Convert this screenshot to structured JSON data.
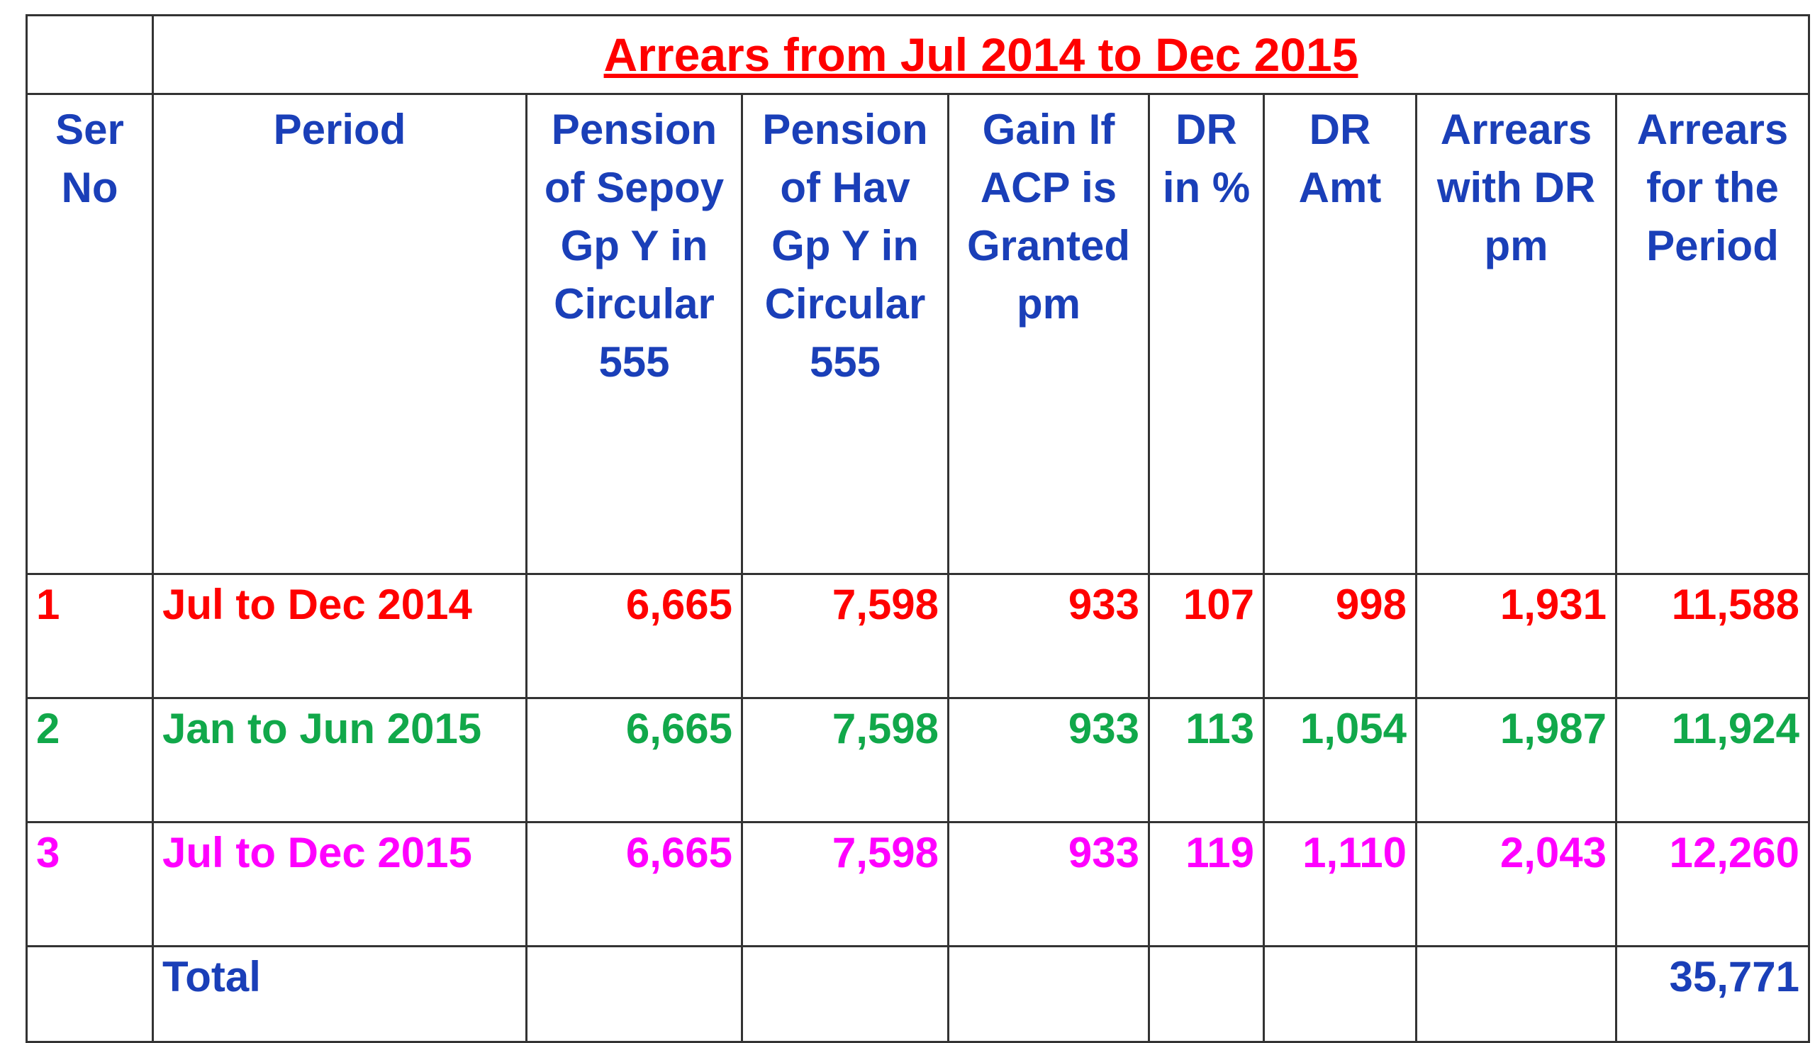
{
  "title": "Arrears from Jul 2014 to Dec 2015",
  "colors": {
    "title": "#ff0000",
    "header": "#1a3fb8",
    "border": "#333333",
    "total": "#1a3fb8"
  },
  "headers": [
    [
      "Ser",
      "No"
    ],
    [
      "Period"
    ],
    [
      "Pension",
      "of Sepoy",
      "Gp Y  in",
      "Circular",
      "555"
    ],
    [
      "Pension",
      "of Hav",
      "Gp Y in",
      "Circular",
      "555"
    ],
    [
      "Gain If",
      "ACP is",
      "Granted",
      "pm"
    ],
    [
      "DR",
      "in %"
    ],
    [
      "DR",
      "Amt"
    ],
    [
      "Arrears",
      "with DR",
      "pm"
    ],
    [
      "Arrears",
      "for the",
      "Period"
    ]
  ],
  "rows": [
    {
      "color": "#ff0000",
      "cells": [
        "1",
        "Jul to Dec 2014",
        "6,665",
        "7,598",
        "933",
        "107",
        "998",
        "1,931",
        "11,588"
      ]
    },
    {
      "color": "#11a84a",
      "cells": [
        "2",
        "Jan to Jun 2015",
        "6,665",
        "7,598",
        "933",
        "113",
        "1,054",
        "1,987",
        "11,924"
      ]
    },
    {
      "color": "#ff00ff",
      "cells": [
        "3",
        "Jul to Dec 2015",
        "6,665",
        "7,598",
        "933",
        "119",
        "1,110",
        "2,043",
        "12,260"
      ]
    }
  ],
  "total": {
    "label": "Total",
    "value": "35,771"
  }
}
